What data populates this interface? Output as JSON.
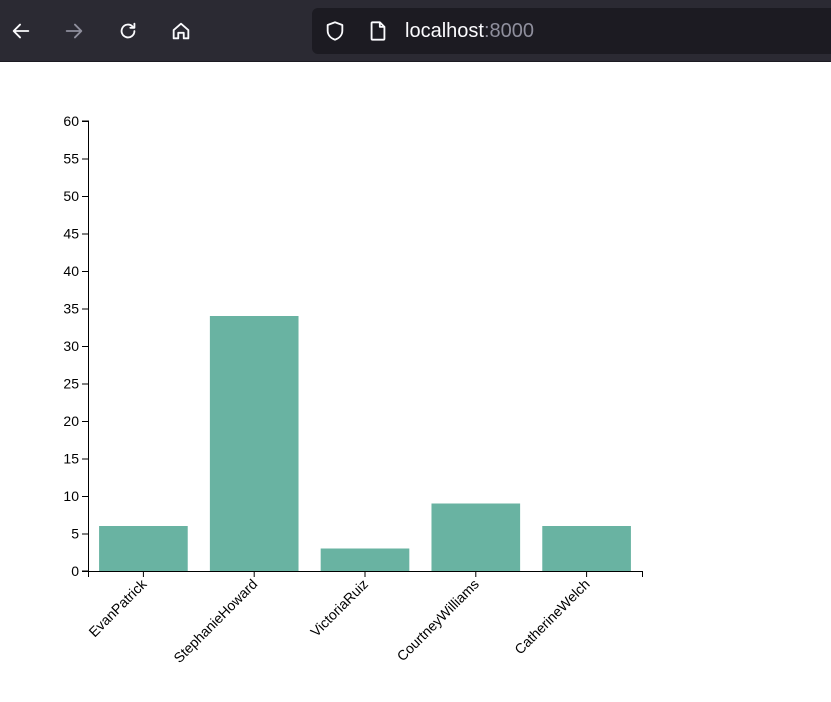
{
  "browser": {
    "url_host": "localhost",
    "url_port": ":8000"
  },
  "chart_data": {
    "type": "bar",
    "categories": [
      "EvanPatrick",
      "StephanieHoward",
      "VictoriaRuiz",
      "CourtneyWilliams",
      "CatherineWelch"
    ],
    "values": [
      6,
      34,
      3,
      9,
      6
    ],
    "title": "",
    "xlabel": "",
    "ylabel": "",
    "ylim": [
      0,
      60
    ],
    "yticks": [
      0,
      5,
      10,
      15,
      20,
      25,
      30,
      35,
      40,
      45,
      50,
      55,
      60
    ],
    "bar_color": "#69b3a2",
    "grid": false
  }
}
